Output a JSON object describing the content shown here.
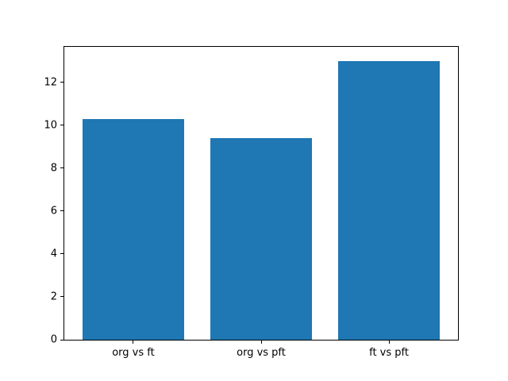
{
  "chart_data": {
    "type": "bar",
    "categories": [
      "org vs ft",
      "org vs pft",
      "ft vs pft"
    ],
    "values": [
      10.3,
      9.4,
      13.0
    ],
    "title": "",
    "xlabel": "",
    "ylabel": "",
    "ylim": [
      0,
      13.65
    ],
    "xlim": [
      -0.54,
      2.54
    ],
    "yticks": [
      0,
      2,
      4,
      6,
      8,
      10,
      12
    ],
    "bar_width": 0.8,
    "bar_color": "#1f77b4",
    "background_color": "#ffffff",
    "spine_color": "#000000",
    "tick_label_color": "#000000",
    "grid": false,
    "legend": "none"
  }
}
